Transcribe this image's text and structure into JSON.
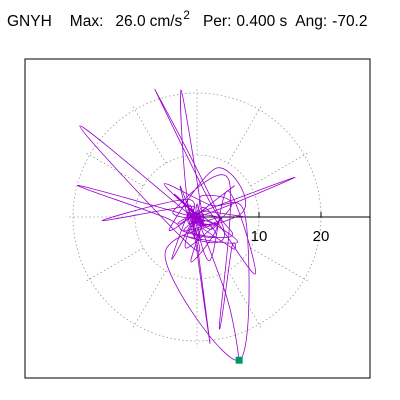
{
  "header": {
    "station": "GNYH",
    "max_label": "Max:",
    "max_value": "26.0",
    "max_unit": "cm/s",
    "max_unit_exp": "2",
    "per_label": "Per:",
    "per_value": "0.400 s",
    "ang_label": "Ang:",
    "ang_value": "-70.2"
  },
  "chart_data": {
    "type": "polar-hodogram",
    "radial_ticks": [
      10,
      20
    ],
    "rings": [
      10,
      20
    ],
    "spokes_deg": [
      0,
      30,
      60,
      90,
      120,
      150,
      180,
      210,
      240,
      270,
      300,
      330
    ],
    "grid": true,
    "colors": {
      "trace": "#9900cc",
      "grid": "#999999",
      "end_marker": "#009966",
      "axis": "#000000"
    },
    "trace_end": [
      6.8,
      -23.1
    ],
    "major_excursions": [
      {
        "x": -18.9,
        "y": 14.7
      },
      {
        "x": -6.8,
        "y": 20.6
      },
      {
        "x": -2.6,
        "y": 20.5
      },
      {
        "x": 15.8,
        "y": 6.4
      },
      {
        "x": -15.3,
        "y": -0.6
      },
      {
        "x": -19.2,
        "y": 5.1
      },
      {
        "x": 9.4,
        "y": -9.2
      },
      {
        "x": 3.6,
        "y": -17.9
      },
      {
        "x": 2.1,
        "y": -20.4
      },
      {
        "x": 6.8,
        "y": -23.1
      }
    ]
  }
}
